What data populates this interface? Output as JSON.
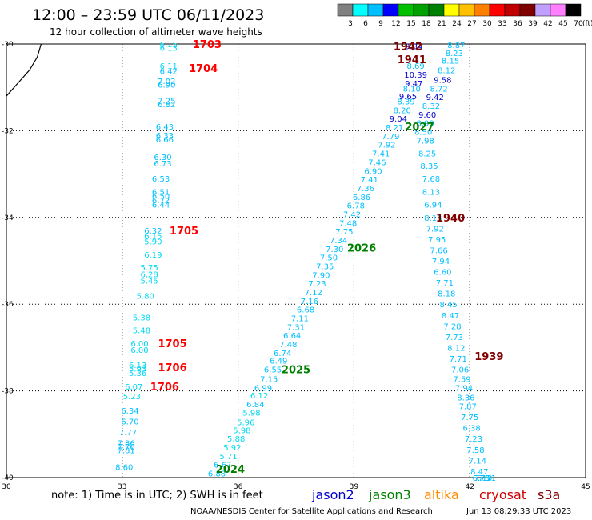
{
  "header": {
    "title": "12:00 – 23:59 UTC 06/11/2023",
    "subtitle": "12 hour collection of altimeter wave heights"
  },
  "colorbar": {
    "unit": "(ft)",
    "colors": [
      "#808080",
      "#00ffff",
      "#00bfff",
      "#0000ff",
      "#00c000",
      "#00a000",
      "#008000",
      "#ffff00",
      "#ffc000",
      "#ff8000",
      "#ff0000",
      "#c00000",
      "#800000",
      "#c0a0ff",
      "#ff80ff",
      "#000000"
    ],
    "labels": [
      "3",
      "6",
      "9",
      "12",
      "15",
      "18",
      "21",
      "24",
      "27",
      "30",
      "33",
      "36",
      "39",
      "42",
      "45",
      "70"
    ]
  },
  "axes": {
    "x_ticks": [
      "30",
      "33",
      "36",
      "39",
      "42",
      "45"
    ],
    "y_ticks": [
      "-30",
      "-32",
      "-34",
      "-36",
      "-38",
      "-40"
    ]
  },
  "footer": {
    "note": "note:  1) Time is in UTC;  2) SWH is in feet",
    "credit": "NOAA/NESDIS Center for Satellite Applications and Research",
    "stamp": "Jun 13 08:29:33 UTC 2023",
    "satellites": [
      {
        "name": "jason2",
        "color": "#0000cc"
      },
      {
        "name": "jason3",
        "color": "#008000"
      },
      {
        "name": "altika",
        "color": "#ff8c00"
      },
      {
        "name": "cryosat",
        "color": "#cc0000"
      },
      {
        "name": "s3a",
        "color": "#800000"
      }
    ]
  },
  "map": {
    "coastline": [
      [
        30.0,
        -31.2
      ],
      [
        30.3,
        -30.9
      ],
      [
        30.6,
        -30.6
      ],
      [
        30.8,
        -30.3
      ],
      [
        30.9,
        -30.0
      ]
    ],
    "time_labels": [
      {
        "text": "1703",
        "lon": 35.2,
        "lat": -30.0,
        "color": "#ff0000"
      },
      {
        "text": "1704",
        "lon": 35.1,
        "lat": -30.55,
        "color": "#ff0000"
      },
      {
        "text": "1705",
        "lon": 34.6,
        "lat": -34.3,
        "color": "#ff0000"
      },
      {
        "text": "1705",
        "lon": 34.3,
        "lat": -36.9,
        "color": "#ff0000"
      },
      {
        "text": "1706",
        "lon": 34.3,
        "lat": -37.45,
        "color": "#ff0000"
      },
      {
        "text": "1706",
        "lon": 34.1,
        "lat": -37.9,
        "color": "#ff0000"
      },
      {
        "text": "1942",
        "lon": 40.4,
        "lat": -30.05,
        "color": "#800000"
      },
      {
        "text": "1941",
        "lon": 40.5,
        "lat": -30.35,
        "color": "#800000"
      },
      {
        "text": "1940",
        "lon": 41.5,
        "lat": -34.0,
        "color": "#800000"
      },
      {
        "text": "1939",
        "lon": 42.5,
        "lat": -37.2,
        "color": "#800000"
      },
      {
        "text": "2027",
        "lon": 40.7,
        "lat": -31.9,
        "color": "#008000"
      },
      {
        "text": "2026",
        "lon": 39.2,
        "lat": -34.7,
        "color": "#008000"
      },
      {
        "text": "2025",
        "lon": 37.5,
        "lat": -37.5,
        "color": "#008000"
      },
      {
        "text": "2024",
        "lon": 35.8,
        "lat": -39.8,
        "color": "#008000"
      }
    ],
    "points": [
      {
        "t": "6.15",
        "lon": 34.2,
        "lat": -30.0
      },
      {
        "t": "6.13",
        "lon": 34.2,
        "lat": -30.08
      },
      {
        "t": "6.11",
        "lon": 34.2,
        "lat": -30.5
      },
      {
        "t": "6.42",
        "lon": 34.2,
        "lat": -30.62
      },
      {
        "t": "7.02",
        "lon": 34.15,
        "lat": -30.85
      },
      {
        "t": "6.90",
        "lon": 34.15,
        "lat": -30.93
      },
      {
        "t": "7.25",
        "lon": 34.15,
        "lat": -31.3
      },
      {
        "t": "6.82",
        "lon": 34.15,
        "lat": -31.38
      },
      {
        "t": "6.43",
        "lon": 34.1,
        "lat": -31.9
      },
      {
        "t": "6.33",
        "lon": 34.1,
        "lat": -32.1
      },
      {
        "t": "6.66",
        "lon": 34.1,
        "lat": -32.2
      },
      {
        "t": "6.30",
        "lon": 34.05,
        "lat": -32.6
      },
      {
        "t": "6.73",
        "lon": 34.05,
        "lat": -32.75
      },
      {
        "t": "6.53",
        "lon": 34.0,
        "lat": -33.1
      },
      {
        "t": "6.51",
        "lon": 34.0,
        "lat": -33.4
      },
      {
        "t": "6.50",
        "lon": 34.0,
        "lat": -33.5
      },
      {
        "t": "6.72",
        "lon": 34.0,
        "lat": -33.6
      },
      {
        "t": "6.44",
        "lon": 34.0,
        "lat": -33.7
      },
      {
        "t": "6.32",
        "lon": 33.8,
        "lat": -34.3
      },
      {
        "t": "6.15",
        "lon": 33.8,
        "lat": -34.42
      },
      {
        "t": "5.90",
        "lon": 33.8,
        "lat": -34.55
      },
      {
        "t": "6.19",
        "lon": 33.8,
        "lat": -34.85
      },
      {
        "t": "5.75",
        "lon": 33.7,
        "lat": -35.15
      },
      {
        "t": "6.28",
        "lon": 33.7,
        "lat": -35.3
      },
      {
        "t": "5.45",
        "lon": 33.7,
        "lat": -35.45
      },
      {
        "t": "5.80",
        "lon": 33.6,
        "lat": -35.8
      },
      {
        "t": "5.38",
        "lon": 33.5,
        "lat": -36.3
      },
      {
        "t": "5.48",
        "lon": 33.5,
        "lat": -36.6
      },
      {
        "t": "6.00",
        "lon": 33.45,
        "lat": -36.9
      },
      {
        "t": "6.00",
        "lon": 33.45,
        "lat": -37.05
      },
      {
        "t": "6.13",
        "lon": 33.4,
        "lat": -37.4
      },
      {
        "t": "5.93",
        "lon": 33.4,
        "lat": -37.48
      },
      {
        "t": "5.36",
        "lon": 33.4,
        "lat": -37.58
      },
      {
        "t": "6.07",
        "lon": 33.3,
        "lat": -37.9
      },
      {
        "t": "5.23",
        "lon": 33.25,
        "lat": -38.12
      },
      {
        "t": "6.34",
        "lon": 33.2,
        "lat": -38.45
      },
      {
        "t": "6.70",
        "lon": 33.2,
        "lat": -38.7
      },
      {
        "t": "7.77",
        "lon": 33.15,
        "lat": -38.95
      },
      {
        "t": "7.86",
        "lon": 33.1,
        "lat": -39.2
      },
      {
        "t": "7.76",
        "lon": 33.1,
        "lat": -39.28
      },
      {
        "t": "7.81",
        "lon": 33.1,
        "lat": -39.36
      },
      {
        "t": "8.60",
        "lon": 33.05,
        "lat": -39.75
      },
      {
        "t": "6.88",
        "lon": 35.45,
        "lat": -39.9
      },
      {
        "t": "6.67",
        "lon": 35.6,
        "lat": -39.7
      },
      {
        "t": "5.71",
        "lon": 35.75,
        "lat": -39.5
      },
      {
        "t": "5.92",
        "lon": 35.85,
        "lat": -39.3
      },
      {
        "t": "5.88",
        "lon": 35.95,
        "lat": -39.1
      },
      {
        "t": "5.98",
        "lon": 36.1,
        "lat": -38.9
      },
      {
        "t": "5.96",
        "lon": 36.2,
        "lat": -38.72
      },
      {
        "t": "5.98",
        "lon": 36.35,
        "lat": -38.5
      },
      {
        "t": "6.84",
        "lon": 36.45,
        "lat": -38.3
      },
      {
        "t": "6.12",
        "lon": 36.55,
        "lat": -38.1
      },
      {
        "t": "6.99",
        "lon": 36.65,
        "lat": -37.92
      },
      {
        "t": "7.15",
        "lon": 36.8,
        "lat": -37.72
      },
      {
        "t": "6.55",
        "lon": 36.9,
        "lat": -37.5
      },
      {
        "t": "6.49",
        "lon": 37.05,
        "lat": -37.3
      },
      {
        "t": "6.74",
        "lon": 37.15,
        "lat": -37.12
      },
      {
        "t": "7.48",
        "lon": 37.3,
        "lat": -36.92
      },
      {
        "t": "6.64",
        "lon": 37.4,
        "lat": -36.72
      },
      {
        "t": "7.31",
        "lon": 37.5,
        "lat": -36.52
      },
      {
        "t": "7.11",
        "lon": 37.6,
        "lat": -36.32
      },
      {
        "t": "6.68",
        "lon": 37.75,
        "lat": -36.12
      },
      {
        "t": "7.16",
        "lon": 37.85,
        "lat": -35.92
      },
      {
        "t": "7.12",
        "lon": 37.95,
        "lat": -35.72
      },
      {
        "t": "7.23",
        "lon": 38.05,
        "lat": -35.52
      },
      {
        "t": "7.90",
        "lon": 38.15,
        "lat": -35.32
      },
      {
        "t": "7.35",
        "lon": 38.25,
        "lat": -35.12
      },
      {
        "t": "7.50",
        "lon": 38.35,
        "lat": -34.92
      },
      {
        "t": "7.30",
        "lon": 38.5,
        "lat": -34.72
      },
      {
        "t": "7.34",
        "lon": 38.6,
        "lat": -34.52
      },
      {
        "t": "7.75",
        "lon": 38.75,
        "lat": -34.32
      },
      {
        "t": "7.48",
        "lon": 38.85,
        "lat": -34.12
      },
      {
        "t": "7.42",
        "lon": 38.95,
        "lat": -33.92
      },
      {
        "t": "6.78",
        "lon": 39.05,
        "lat": -33.72
      },
      {
        "t": "6.86",
        "lon": 39.2,
        "lat": -33.52
      },
      {
        "t": "7.36",
        "lon": 39.3,
        "lat": -33.32
      },
      {
        "t": "7.41",
        "lon": 39.4,
        "lat": -33.12
      },
      {
        "t": "6.90",
        "lon": 39.5,
        "lat": -32.92
      },
      {
        "t": "7.46",
        "lon": 39.6,
        "lat": -32.72
      },
      {
        "t": "7.41",
        "lon": 39.7,
        "lat": -32.52
      },
      {
        "t": "7.92",
        "lon": 39.85,
        "lat": -32.32
      },
      {
        "t": "7.79",
        "lon": 39.95,
        "lat": -32.12
      },
      {
        "t": "8.21",
        "lon": 40.05,
        "lat": -31.92
      },
      {
        "t": "9.04",
        "lon": 40.15,
        "lat": -31.72
      },
      {
        "t": "8.20",
        "lon": 40.25,
        "lat": -31.52
      },
      {
        "t": "8.39",
        "lon": 40.35,
        "lat": -31.32
      },
      {
        "t": "9.65",
        "lon": 40.4,
        "lat": -31.2
      },
      {
        "t": "8.10",
        "lon": 40.5,
        "lat": -31.02
      },
      {
        "t": "9.47",
        "lon": 40.55,
        "lat": -30.9
      },
      {
        "t": "10.39",
        "lon": 40.6,
        "lat": -30.7
      },
      {
        "t": "8.69",
        "lon": 40.6,
        "lat": -30.5
      },
      {
        "t": "9.34",
        "lon": 40.55,
        "lat": -30.05
      },
      {
        "t": "8.87",
        "lon": 41.65,
        "lat": -30.02
      },
      {
        "t": "8.23",
        "lon": 41.6,
        "lat": -30.2
      },
      {
        "t": "8.15",
        "lon": 41.5,
        "lat": -30.38
      },
      {
        "t": "8.12",
        "lon": 41.4,
        "lat": -30.6
      },
      {
        "t": "9.58",
        "lon": 41.3,
        "lat": -30.82
      },
      {
        "t": "8.72",
        "lon": 41.2,
        "lat": -31.02
      },
      {
        "t": "9.42",
        "lon": 41.1,
        "lat": -31.22
      },
      {
        "t": "8.32",
        "lon": 41.0,
        "lat": -31.42
      },
      {
        "t": "9.60",
        "lon": 40.9,
        "lat": -31.62
      },
      {
        "t": "8.99",
        "lon": 40.85,
        "lat": -31.82
      },
      {
        "t": "8.50",
        "lon": 40.8,
        "lat": -32.02
      },
      {
        "t": "7.98",
        "lon": 40.85,
        "lat": -32.22
      },
      {
        "t": "8.25",
        "lon": 40.9,
        "lat": -32.52
      },
      {
        "t": "8.35",
        "lon": 40.95,
        "lat": -32.8
      },
      {
        "t": "7.68",
        "lon": 41.0,
        "lat": -33.1
      },
      {
        "t": "8.13",
        "lon": 41.0,
        "lat": -33.4
      },
      {
        "t": "6.94",
        "lon": 41.05,
        "lat": -33.7
      },
      {
        "t": "8.13",
        "lon": 41.05,
        "lat": -34.0
      },
      {
        "t": "7.92",
        "lon": 41.1,
        "lat": -34.25
      },
      {
        "t": "7.95",
        "lon": 41.15,
        "lat": -34.5
      },
      {
        "t": "7.66",
        "lon": 41.2,
        "lat": -34.75
      },
      {
        "t": "7.94",
        "lon": 41.25,
        "lat": -35.0
      },
      {
        "t": "6.60",
        "lon": 41.3,
        "lat": -35.25
      },
      {
        "t": "7.71",
        "lon": 41.35,
        "lat": -35.5
      },
      {
        "t": "8.18",
        "lon": 41.4,
        "lat": -35.75
      },
      {
        "t": "8.45",
        "lon": 41.45,
        "lat": -36.0
      },
      {
        "t": "8.47",
        "lon": 41.5,
        "lat": -36.25
      },
      {
        "t": "7.28",
        "lon": 41.55,
        "lat": -36.5
      },
      {
        "t": "7.73",
        "lon": 41.6,
        "lat": -36.75
      },
      {
        "t": "8.12",
        "lon": 41.65,
        "lat": -37.0
      },
      {
        "t": "7.71",
        "lon": 41.7,
        "lat": -37.25
      },
      {
        "t": "7.06",
        "lon": 41.75,
        "lat": -37.5
      },
      {
        "t": "7.59",
        "lon": 41.8,
        "lat": -37.72
      },
      {
        "t": "7.94",
        "lon": 41.85,
        "lat": -37.92
      },
      {
        "t": "8.36",
        "lon": 41.9,
        "lat": -38.15
      },
      {
        "t": "7.87",
        "lon": 41.95,
        "lat": -38.35
      },
      {
        "t": "7.75",
        "lon": 42.0,
        "lat": -38.6
      },
      {
        "t": "6.38",
        "lon": 42.05,
        "lat": -38.85
      },
      {
        "t": "7.23",
        "lon": 42.1,
        "lat": -39.1
      },
      {
        "t": "7.58",
        "lon": 42.15,
        "lat": -39.35
      },
      {
        "t": "7.14",
        "lon": 42.2,
        "lat": -39.6
      },
      {
        "t": "8.47",
        "lon": 42.25,
        "lat": -39.85
      },
      {
        "t": "6.75",
        "lon": 42.3,
        "lat": -40.0
      },
      {
        "t": "7.10",
        "lon": 42.35,
        "lat": -40.0
      },
      {
        "t": "7.31",
        "lon": 42.45,
        "lat": -40.0
      }
    ]
  }
}
